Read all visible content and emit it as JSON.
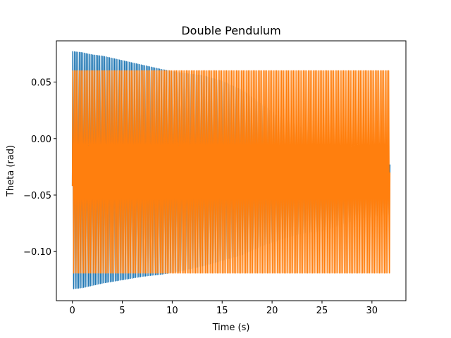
{
  "chart_data": {
    "type": "line",
    "title": "Double Pendulum",
    "xlabel": "Time (s)",
    "ylabel": "Theta (rad)",
    "xlim": [
      -1.6,
      33.4
    ],
    "ylim": [
      -0.1435,
      0.0865
    ],
    "xticks": [
      0,
      5,
      10,
      15,
      20,
      25,
      30
    ],
    "xtick_labels": [
      "0",
      "5",
      "10",
      "15",
      "20",
      "25",
      "30"
    ],
    "yticks": [
      -0.1,
      -0.05,
      0.0,
      0.05
    ],
    "ytick_labels": [
      "−0.10",
      "−0.05",
      "0.00",
      "0.05"
    ],
    "grid": false,
    "legend": "none",
    "series": [
      {
        "color": "#1f77b4",
        "x_start": 0.0,
        "x_end": 31.8,
        "oscillations": 190,
        "initial_value": -0.042,
        "final_value": -0.023,
        "envelope_time": [
          0,
          1,
          2,
          3,
          5,
          7,
          9,
          11,
          13,
          15,
          17,
          19,
          21,
          23,
          25,
          27,
          29,
          31.8
        ],
        "envelope_max": [
          0.077,
          0.076,
          0.074,
          0.073,
          0.069,
          0.065,
          0.061,
          0.058,
          0.056,
          0.051,
          0.043,
          0.03,
          0.018,
          0.01,
          0.001,
          -0.003,
          -0.005,
          -0.01
        ],
        "envelope_min": [
          -0.133,
          -0.132,
          -0.13,
          -0.128,
          -0.125,
          -0.122,
          -0.12,
          -0.117,
          -0.113,
          -0.108,
          -0.103,
          -0.095,
          -0.089,
          -0.084,
          -0.082,
          -0.076,
          -0.071,
          -0.067
        ]
      },
      {
        "color": "#ff7f0e",
        "x_start": 0.0,
        "x_end": 31.8,
        "oscillations": 190,
        "initial_value": -0.042,
        "final_value": -0.03,
        "envelope_time": [
          0,
          31.8
        ],
        "envelope_max": [
          0.06,
          0.06
        ],
        "envelope_min": [
          -0.119,
          -0.119
        ]
      }
    ]
  }
}
